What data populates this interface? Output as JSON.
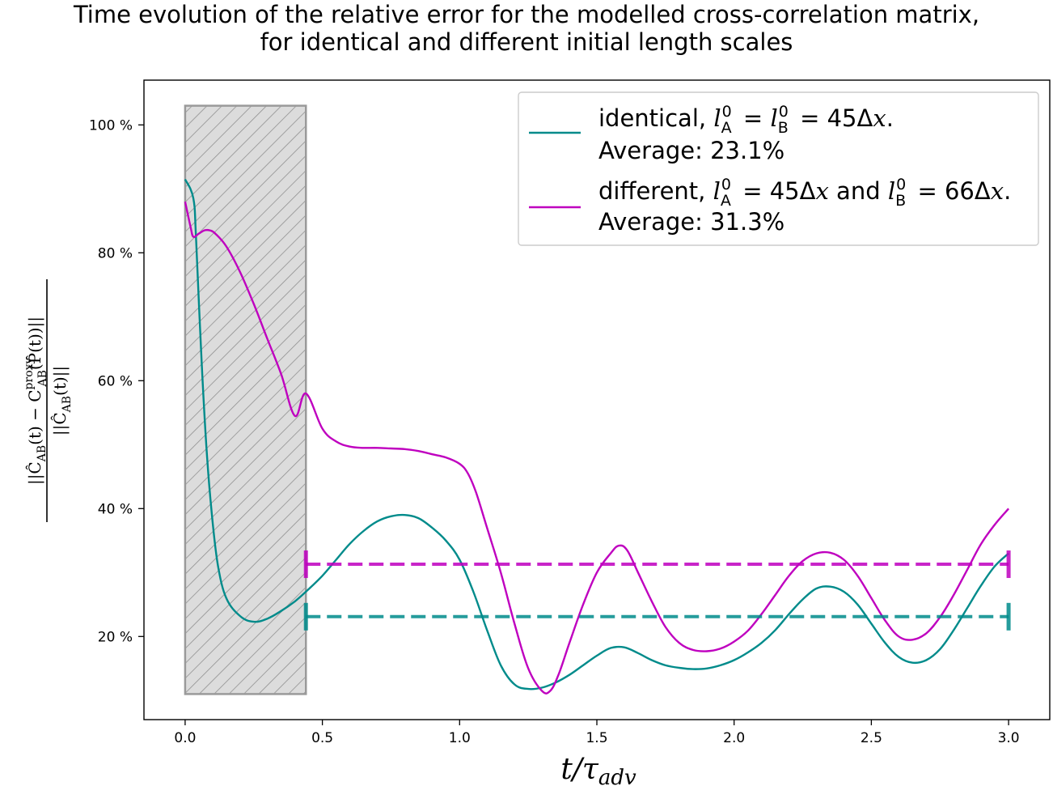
{
  "title_lines": [
    "Time evolution of the relative error for the modelled cross-correlation matrix,",
    "for identical and different initial length scales"
  ],
  "chart_data": {
    "type": "line",
    "title": "Time evolution of the relative error for the modelled cross-correlation matrix, for identical and different initial length scales",
    "xlabel": "t/τ_adv",
    "ylabel": "||Ĉ_AB(t) − C_AB^proxy(P̂(t))|| / ||Ĉ_AB(t)||",
    "xlim": [
      -0.15,
      3.15
    ],
    "ylim": [
      7,
      107
    ],
    "x_ticks": [
      0.0,
      0.5,
      1.0,
      1.5,
      2.0,
      2.5,
      3.0
    ],
    "x_tick_labels": [
      "0.0",
      "0.5",
      "1.0",
      "1.5",
      "2.0",
      "2.5",
      "3.0"
    ],
    "y_ticks": [
      20,
      40,
      60,
      80,
      100
    ],
    "y_tick_labels": [
      "20 %",
      "40 %",
      "60 %",
      "80 %",
      "100 %"
    ],
    "grid": false,
    "legend_position": "top-right",
    "shaded_region": {
      "x": [
        0.0,
        0.44
      ],
      "y": [
        11,
        103
      ],
      "pattern": "hatched",
      "color": "#dcdcdc"
    },
    "series": [
      {
        "name": "identical",
        "legend_label": "identical, l_A^0 = l_B^0 = 45Δx.",
        "legend_average": "Average: 23.1%",
        "color": "#008b8b",
        "average_value": 23.1,
        "average_range": [
          0.44,
          3.0
        ],
        "x": [
          0.0,
          0.03,
          0.04,
          0.06,
          0.08,
          0.1,
          0.12,
          0.15,
          0.2,
          0.25,
          0.3,
          0.35,
          0.4,
          0.44,
          0.5,
          0.55,
          0.6,
          0.65,
          0.7,
          0.75,
          0.8,
          0.85,
          0.9,
          0.95,
          1.0,
          1.05,
          1.1,
          1.15,
          1.2,
          1.25,
          1.3,
          1.35,
          1.4,
          1.45,
          1.5,
          1.55,
          1.6,
          1.65,
          1.7,
          1.75,
          1.8,
          1.85,
          1.9,
          1.95,
          2.0,
          2.05,
          2.1,
          2.15,
          2.2,
          2.25,
          2.3,
          2.35,
          2.4,
          2.45,
          2.5,
          2.55,
          2.6,
          2.65,
          2.7,
          2.75,
          2.8,
          2.85,
          2.9,
          2.95,
          3.0
        ],
        "y": [
          91.5,
          88.5,
          82,
          63,
          48,
          38,
          31,
          26,
          23.2,
          22.3,
          22.8,
          24,
          25.5,
          27,
          29.5,
          32,
          34.5,
          36.5,
          38,
          38.8,
          39,
          38.5,
          37,
          35,
          32,
          27,
          21,
          15.5,
          12.5,
          11.8,
          12,
          12.8,
          14,
          15.5,
          17,
          18.2,
          18.3,
          17.4,
          16.3,
          15.5,
          15.1,
          14.9,
          15,
          15.5,
          16.3,
          17.5,
          19,
          21,
          23.5,
          25.8,
          27.5,
          27.8,
          27,
          25,
          22,
          19,
          16.8,
          15.9,
          16.3,
          18,
          21,
          24.5,
          28,
          31,
          33
        ]
      },
      {
        "name": "different",
        "legend_label": "different, l_A^0 = 45Δx and l_B^0 = 66Δx.",
        "legend_average": "Average: 31.3%",
        "color": "#bf00bf",
        "average_value": 31.3,
        "average_range": [
          0.44,
          3.0
        ],
        "x": [
          0.0,
          0.02,
          0.03,
          0.05,
          0.07,
          0.09,
          0.11,
          0.15,
          0.2,
          0.25,
          0.3,
          0.35,
          0.4,
          0.44,
          0.5,
          0.55,
          0.6,
          0.65,
          0.7,
          0.75,
          0.8,
          0.85,
          0.9,
          0.95,
          1.0,
          1.03,
          1.06,
          1.1,
          1.15,
          1.2,
          1.25,
          1.3,
          1.33,
          1.36,
          1.4,
          1.45,
          1.5,
          1.55,
          1.58,
          1.61,
          1.65,
          1.7,
          1.75,
          1.8,
          1.85,
          1.9,
          1.95,
          2.0,
          2.05,
          2.1,
          2.15,
          2.2,
          2.25,
          2.3,
          2.35,
          2.4,
          2.45,
          2.5,
          2.55,
          2.6,
          2.65,
          2.7,
          2.75,
          2.8,
          2.85,
          2.9,
          2.95,
          3.0
        ],
        "y": [
          88,
          84,
          82.5,
          83,
          83.5,
          83.5,
          83,
          81,
          77,
          72,
          66.5,
          61,
          54.5,
          58,
          52.5,
          50.5,
          49.7,
          49.5,
          49.5,
          49.4,
          49.3,
          49,
          48.5,
          48,
          47,
          45.5,
          42.5,
          37,
          30,
          22,
          15,
          11.5,
          11.5,
          14,
          19,
          25,
          30,
          33,
          34.2,
          33.5,
          30,
          25.5,
          21.5,
          19,
          17.9,
          17.7,
          18.1,
          19.2,
          20.9,
          23.5,
          26.5,
          29.5,
          31.8,
          33,
          33.1,
          32,
          29.5,
          26,
          22.5,
          20,
          19.5,
          20.5,
          23,
          26.5,
          30.5,
          34.5,
          37.5,
          40
        ]
      }
    ]
  }
}
